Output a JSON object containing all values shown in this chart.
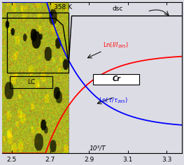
{
  "bg_color": "#dcdce4",
  "plot_bg": "#dcdce4",
  "xlim": [
    2.45,
    3.38
  ],
  "ylim": [
    -3.5,
    3.0
  ],
  "xticks": [
    2.5,
    2.7,
    2.9,
    3.1,
    3.3
  ],
  "phase_boundary_x": 2.795,
  "temp_label": "358 K",
  "dsc_label": "dsc",
  "ln_I_label": "Ln(ί/ί₂₉₅)",
  "ln_tau_label": "Ln(τ/τ₂₉₅)",
  "cr_label": "Cr",
  "lc_label": "LC",
  "xlabel": "10³/T"
}
